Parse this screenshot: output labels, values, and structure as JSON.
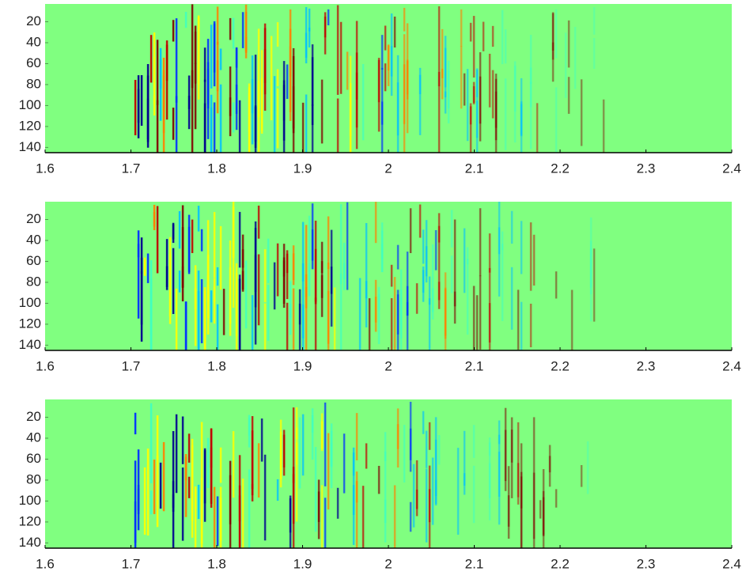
{
  "chart_data": [
    {
      "type": "heatmap",
      "xlim": [
        1.6,
        2.4
      ],
      "xticks": [
        1.6,
        1.7,
        1.8,
        1.9,
        2,
        2.1,
        2.2,
        2.3,
        2.4
      ],
      "ylim": [
        145,
        3
      ],
      "yticks": [
        20,
        40,
        60,
        80,
        100,
        120,
        140
      ],
      "color": "#80ff80"
    },
    {
      "type": "heatmap",
      "xlim": [
        1.6,
        2.4
      ],
      "xticks": [
        1.6,
        1.7,
        1.8,
        1.9,
        2,
        2.1,
        2.2,
        2.3,
        2.4
      ],
      "ylim": [
        145,
        3
      ],
      "yticks": [
        20,
        40,
        60,
        80,
        100,
        120,
        140
      ],
      "color": "#80ff80"
    },
    {
      "type": "heatmap",
      "xlim": [
        1.6,
        2.4
      ],
      "xticks": [
        1.6,
        1.7,
        1.8,
        1.9,
        2,
        2.1,
        2.2,
        2.3,
        2.4
      ],
      "ylim": [
        145,
        3
      ],
      "yticks": [
        20,
        40,
        60,
        80,
        100,
        120,
        140
      ],
      "color": "#80ff80"
    }
  ]
}
